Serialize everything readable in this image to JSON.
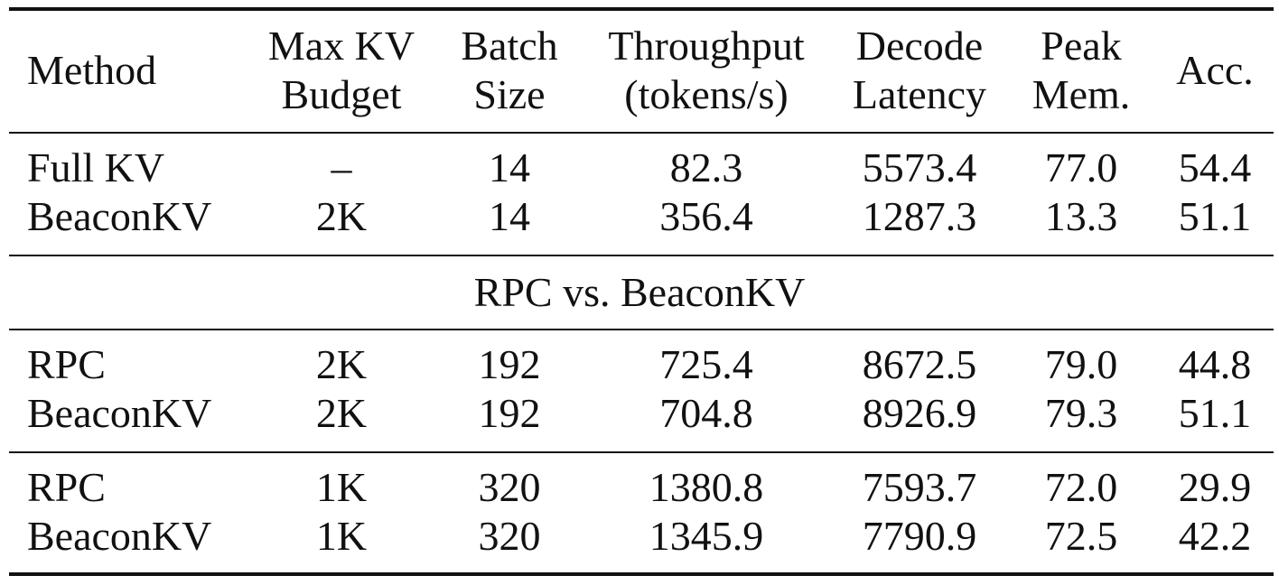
{
  "table": {
    "headers": {
      "method": "Method",
      "budget": [
        "Max KV",
        "Budget"
      ],
      "batch": [
        "Batch",
        "Size"
      ],
      "throughput": [
        "Throughput",
        "(tokens/s)"
      ],
      "latency": [
        "Decode",
        "Latency"
      ],
      "memory": [
        "Peak",
        "Mem."
      ],
      "accuracy": "Acc."
    },
    "group1": [
      {
        "method": "Full KV",
        "budget": "–",
        "batch": "14",
        "throughput": "82.3",
        "latency": "5573.4",
        "memory": "77.0",
        "accuracy": "54.4"
      },
      {
        "method": "BeaconKV",
        "budget": "2K",
        "batch": "14",
        "throughput": "356.4",
        "latency": "1287.3",
        "memory": "13.3",
        "accuracy": "51.1"
      }
    ],
    "section_label": "RPC vs. BeaconKV",
    "group2": [
      {
        "method": "RPC",
        "budget": "2K",
        "batch": "192",
        "throughput": "725.4",
        "latency": "8672.5",
        "memory": "79.0",
        "accuracy": "44.8"
      },
      {
        "method": "BeaconKV",
        "budget": "2K",
        "batch": "192",
        "throughput": "704.8",
        "latency": "8926.9",
        "memory": "79.3",
        "accuracy": "51.1"
      }
    ],
    "group3": [
      {
        "method": "RPC",
        "budget": "1K",
        "batch": "320",
        "throughput": "1380.8",
        "latency": "7593.7",
        "memory": "72.0",
        "accuracy": "29.9"
      },
      {
        "method": "BeaconKV",
        "budget": "1K",
        "batch": "320",
        "throughput": "1345.9",
        "latency": "7790.9",
        "memory": "72.5",
        "accuracy": "42.2"
      }
    ]
  }
}
